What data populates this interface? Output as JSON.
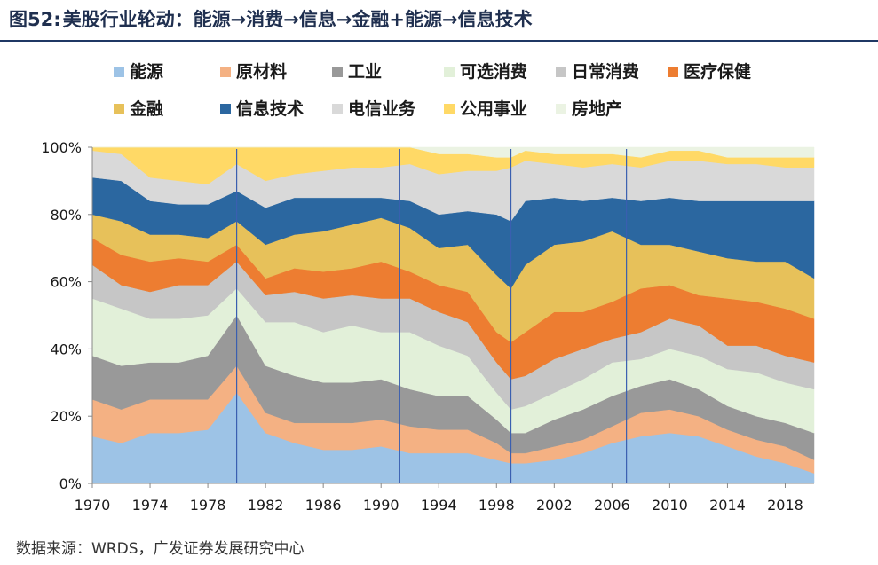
{
  "title": {
    "figure_label": "图52:",
    "text": "美股行业轮动：能源→消费→信息→金融+能源→信息技术"
  },
  "source": "数据来源：WRDS，广发证券发展研究中心",
  "chart_data": {
    "type": "area",
    "stacked": true,
    "title": "美股行业轮动：能源→消费→信息→金融+能源→信息技术",
    "xlabel": "",
    "ylabel": "",
    "x_ticks": [
      "1970",
      "1974",
      "1978",
      "1982",
      "1986",
      "1990",
      "1994",
      "1998",
      "2002",
      "2006",
      "2010",
      "2014",
      "2018"
    ],
    "y_ticks": [
      "0%",
      "20%",
      "40%",
      "60%",
      "80%",
      "100%"
    ],
    "xlim": [
      1970,
      2020
    ],
    "ylim": [
      0,
      100
    ],
    "grid": false,
    "legend": "top",
    "x": [
      1970,
      1972,
      1974,
      1976,
      1978,
      1980,
      1982,
      1984,
      1986,
      1988,
      1990,
      1992,
      1994,
      1996,
      1998,
      1999,
      2000,
      2002,
      2004,
      2006,
      2008,
      2010,
      2012,
      2014,
      2016,
      2018,
      2020
    ],
    "series": [
      {
        "name": "能源",
        "color": "#9dc3e6",
        "values": [
          14,
          12,
          15,
          15,
          16,
          27,
          15,
          12,
          10,
          10,
          11,
          9,
          9,
          9,
          7,
          6,
          6,
          7,
          9,
          12,
          14,
          15,
          14,
          11,
          8,
          6,
          3
        ]
      },
      {
        "name": "原材料",
        "color": "#f4b183",
        "values": [
          11,
          10,
          10,
          10,
          9,
          8,
          6,
          6,
          8,
          8,
          8,
          8,
          7,
          7,
          5,
          3,
          3,
          4,
          4,
          5,
          7,
          7,
          6,
          5,
          5,
          5,
          4
        ]
      },
      {
        "name": "工业",
        "color": "#999999",
        "values": [
          13,
          13,
          11,
          11,
          13,
          15,
          14,
          14,
          12,
          12,
          12,
          11,
          10,
          10,
          7,
          6,
          6,
          8,
          9,
          9,
          8,
          9,
          8,
          7,
          7,
          7,
          8
        ]
      },
      {
        "name": "可选消费",
        "color": "#e2f0d9",
        "values": [
          17,
          17,
          13,
          13,
          12,
          8,
          13,
          16,
          15,
          17,
          14,
          17,
          15,
          12,
          8,
          7,
          8,
          8,
          9,
          10,
          8,
          9,
          10,
          11,
          13,
          12,
          13
        ]
      },
      {
        "name": "日常消费",
        "color": "#c6c6c6",
        "values": [
          10,
          7,
          8,
          10,
          9,
          8,
          8,
          9,
          10,
          9,
          10,
          10,
          10,
          10,
          9,
          9,
          9,
          10,
          9,
          7,
          8,
          9,
          9,
          7,
          8,
          8,
          8
        ]
      },
      {
        "name": "医疗保健",
        "color": "#ed7d31",
        "values": [
          8,
          9,
          9,
          8,
          7,
          5,
          5,
          7,
          8,
          8,
          11,
          8,
          8,
          9,
          9,
          11,
          13,
          14,
          11,
          11,
          13,
          10,
          9,
          14,
          13,
          14,
          13
        ]
      },
      {
        "name": "金融",
        "color": "#e7c15a",
        "values": [
          7,
          10,
          8,
          7,
          7,
          7,
          10,
          10,
          12,
          13,
          13,
          13,
          11,
          14,
          17,
          16,
          20,
          20,
          21,
          21,
          13,
          12,
          13,
          12,
          12,
          14,
          12
        ]
      },
      {
        "name": "信息技术",
        "color": "#2b67a0",
        "values": [
          11,
          12,
          10,
          9,
          10,
          9,
          11,
          11,
          10,
          8,
          6,
          8,
          10,
          10,
          18,
          20,
          19,
          14,
          12,
          10,
          13,
          14,
          15,
          17,
          18,
          18,
          23
        ]
      },
      {
        "name": "电信业务",
        "color": "#d9d9d9",
        "values": [
          8,
          8,
          7,
          7,
          6,
          8,
          8,
          7,
          8,
          9,
          9,
          11,
          12,
          12,
          13,
          16,
          12,
          10,
          10,
          10,
          10,
          11,
          12,
          11,
          11,
          10,
          10
        ]
      },
      {
        "name": "公用事业",
        "color": "#ffd966",
        "values": [
          1,
          2,
          9,
          10,
          11,
          5,
          10,
          8,
          7,
          6,
          6,
          5,
          6,
          5,
          4,
          3,
          3,
          3,
          4,
          3,
          3,
          3,
          3,
          2,
          2,
          3,
          3
        ]
      },
      {
        "name": "房地产",
        "color": "#ebf3e3",
        "values": [
          0,
          0,
          0,
          0,
          0,
          0,
          0,
          0,
          0,
          0,
          0,
          0,
          2,
          2,
          3,
          3,
          1,
          2,
          2,
          2,
          3,
          1,
          1,
          3,
          3,
          3,
          3
        ]
      }
    ],
    "markers": [
      1980,
      1991.3,
      1999,
      2007
    ]
  }
}
